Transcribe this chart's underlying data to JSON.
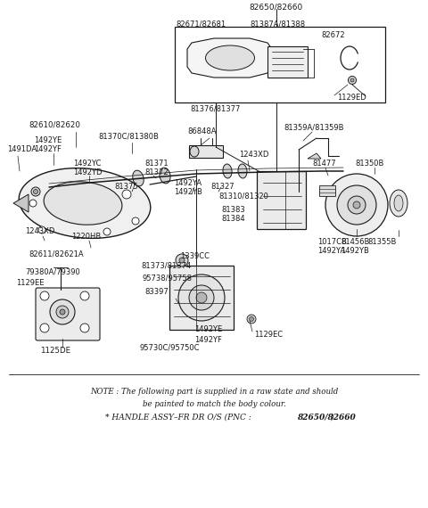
{
  "bg_color": "#ffffff",
  "line_color": "#1a1a1a",
  "text_color": "#1a1a1a",
  "fig_width": 4.8,
  "fig_height": 5.7,
  "dpi": 100,
  "note_line1": "NOTE : The following part is supplied in a raw state and should",
  "note_line2": "be painted to match the body colour.",
  "note_line3_pre": "* HANDLE ASSY–FR DR O/S (PNC : ",
  "note_line3_bold": "82650/82660",
  "note_line3_post": ")"
}
